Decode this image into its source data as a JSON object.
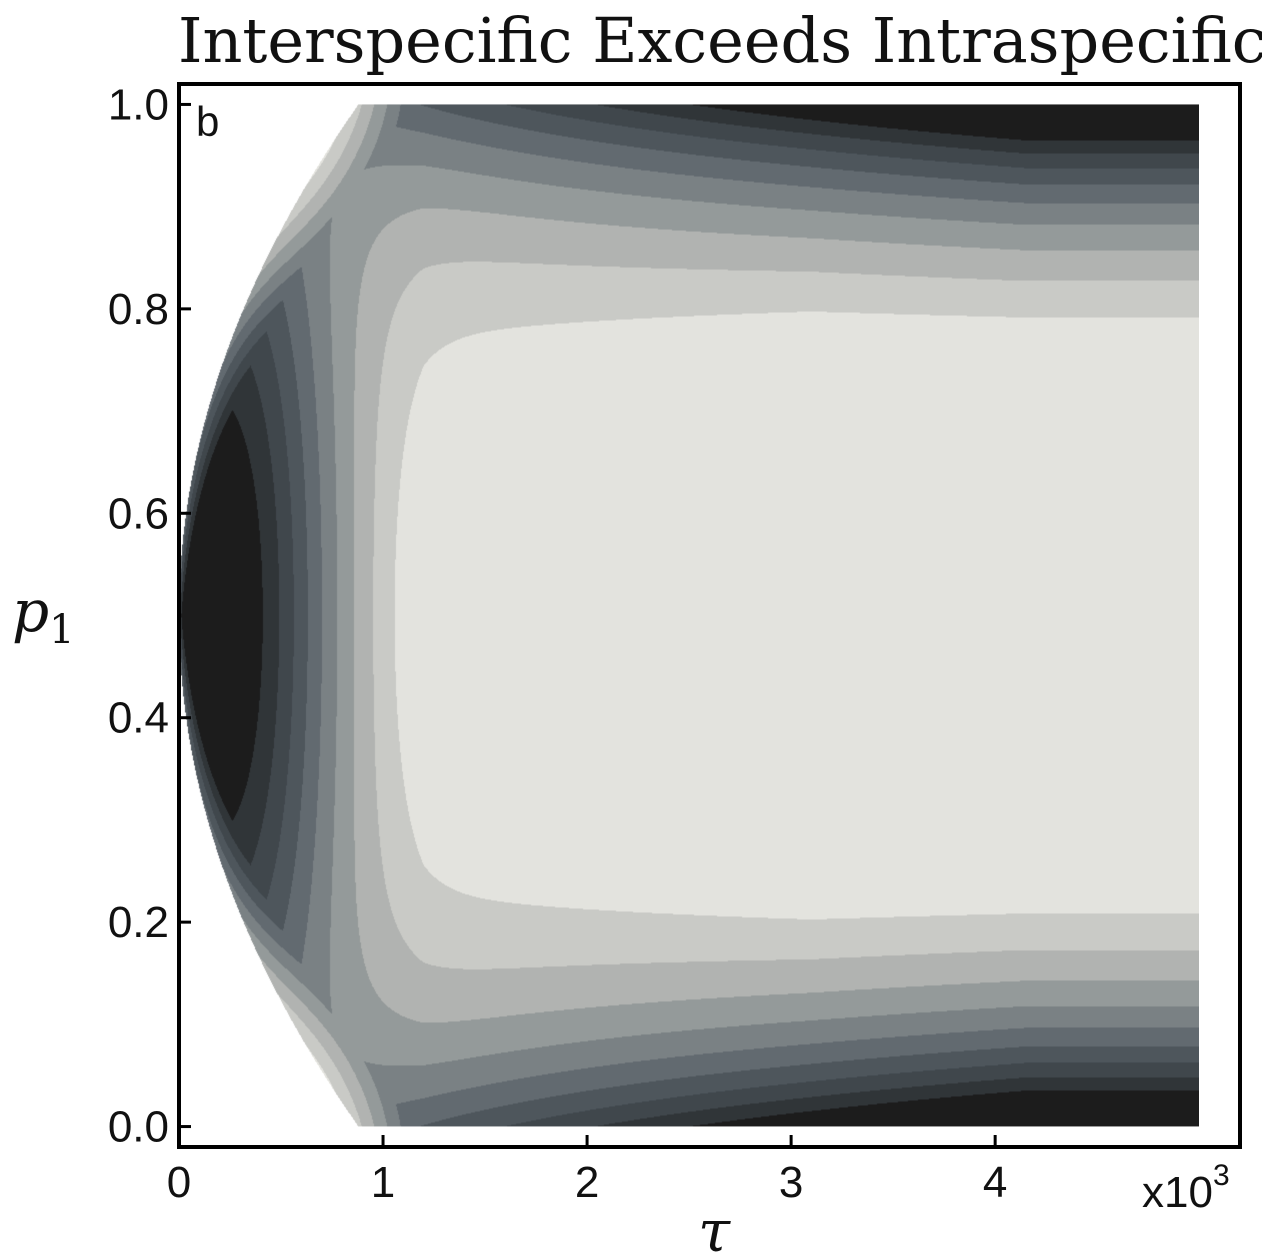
{
  "chart_data": {
    "type": "contour",
    "title": "Interspecific Exceeds Intraspecific",
    "panel_label": "b",
    "xlabel": "τ",
    "ylabel": "p",
    "ylabel_subscript": "1",
    "x_multiplier_label": "x10",
    "x_multiplier_exponent": "3",
    "xlim": [
      0,
      5.2
    ],
    "ylim": [
      -0.02,
      1.02
    ],
    "x_ticks": [
      {
        "value": 0,
        "label": "0"
      },
      {
        "value": 1,
        "label": "1"
      },
      {
        "value": 2,
        "label": "2"
      },
      {
        "value": 3,
        "label": "3"
      },
      {
        "value": 4,
        "label": "4"
      }
    ],
    "y_ticks": [
      {
        "value": 0.0,
        "label": "0.0"
      },
      {
        "value": 0.2,
        "label": "0.2"
      },
      {
        "value": 0.4,
        "label": "0.4"
      },
      {
        "value": 0.6,
        "label": "0.6"
      },
      {
        "value": 0.8,
        "label": "0.8"
      },
      {
        "value": 1.0,
        "label": "1.0"
      }
    ],
    "data_extent": {
      "x": [
        0,
        5.0
      ],
      "y": [
        0,
        1
      ]
    },
    "contour_levels": 10,
    "grayscale": [
      "#000000",
      "#1c1c1c",
      "#303538",
      "#40474c",
      "#4e565c",
      "#626a70",
      "#7a8184",
      "#949a9a",
      "#b1b3b1",
      "#c9cac6",
      "#e3e3de"
    ],
    "grid": false,
    "legend": "none"
  }
}
